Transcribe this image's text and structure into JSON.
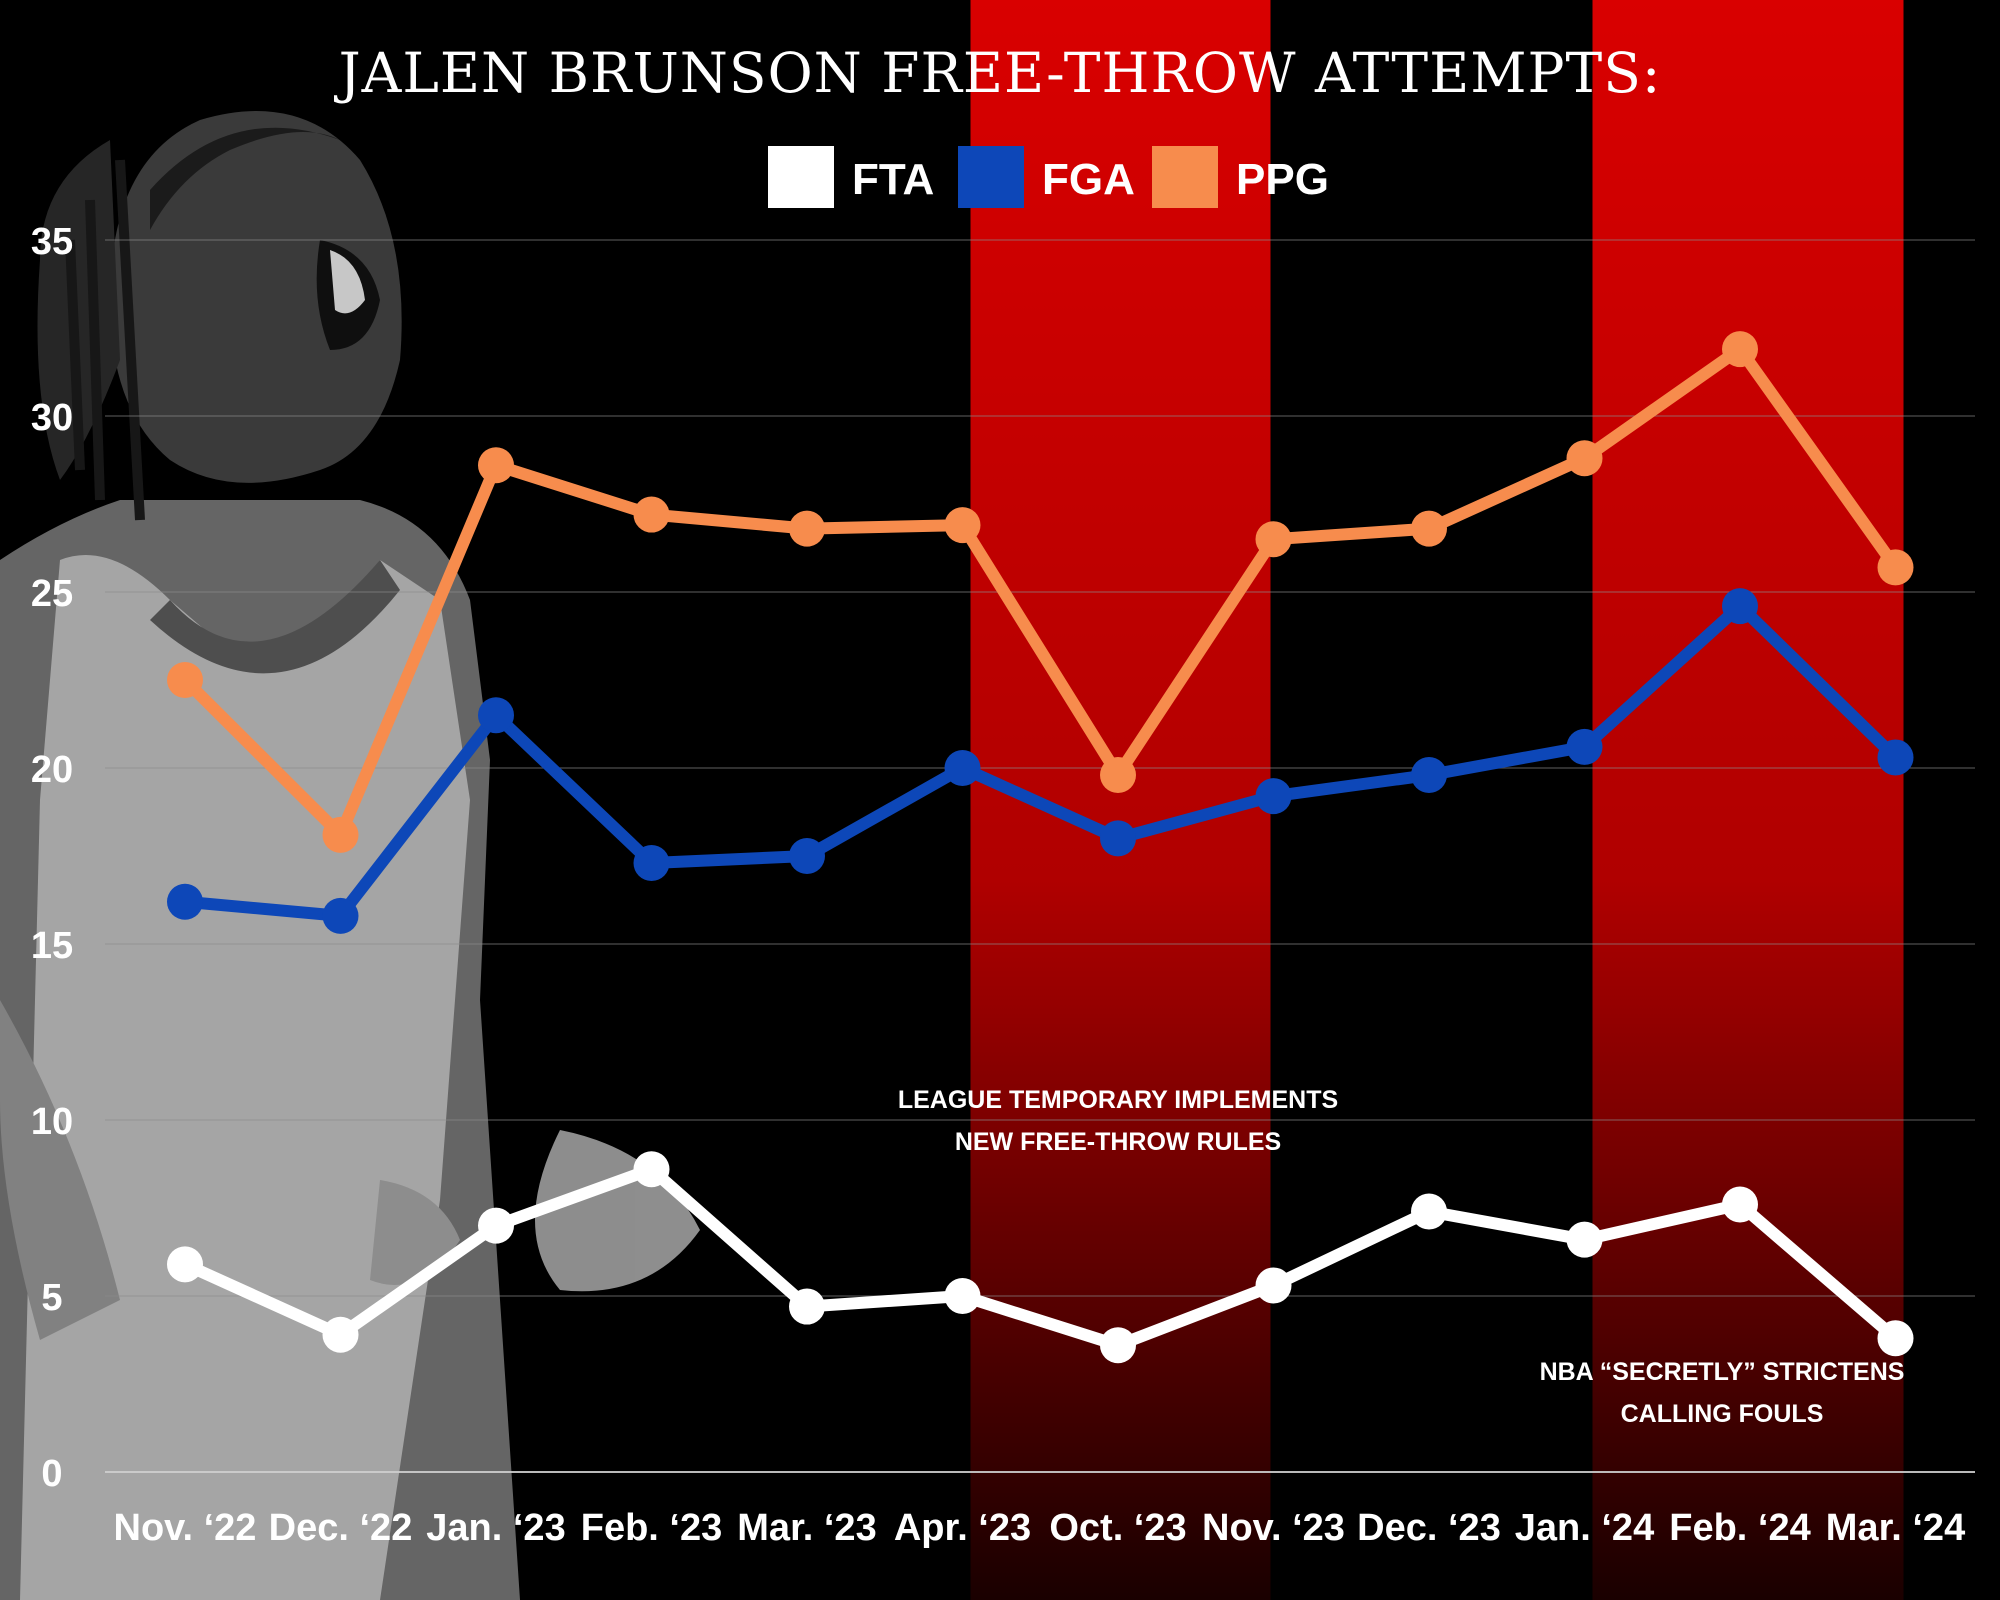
{
  "chart_data": {
    "type": "line",
    "title": "JALEN BRUNSON FREE-THROW ATTEMPTS:",
    "categories": [
      "Nov. ‘22",
      "Dec. ‘22",
      "Jan. ‘23",
      "Feb. ‘23",
      "Mar. ‘23",
      "Apr. ‘23",
      "Oct. ‘23",
      "Nov. ‘23",
      "Dec. ‘23",
      "Jan. ‘24",
      "Feb. ‘24",
      "Mar. ‘24"
    ],
    "ylim": [
      0,
      35
    ],
    "yticks": [
      0,
      5,
      10,
      15,
      20,
      25,
      30,
      35
    ],
    "grid": true,
    "legend_position": "top-center",
    "series": [
      {
        "name": "FTA",
        "color": "#ffffff",
        "values": [
          5.9,
          3.9,
          7.0,
          8.6,
          4.7,
          5.0,
          3.6,
          5.3,
          7.4,
          6.6,
          7.6,
          3.8
        ]
      },
      {
        "name": "FGA",
        "color": "#0d47b8",
        "values": [
          16.2,
          15.8,
          21.5,
          17.3,
          17.5,
          20.0,
          18.0,
          19.2,
          19.8,
          20.6,
          24.6,
          20.3
        ]
      },
      {
        "name": "PPG",
        "color": "#f78c4d",
        "values": [
          22.5,
          18.1,
          28.6,
          27.2,
          26.8,
          26.9,
          19.8,
          26.5,
          26.8,
          28.8,
          31.9,
          25.7
        ]
      }
    ],
    "highlight_ranges": [
      {
        "color": "#d40000",
        "from": "Apr. ‘23",
        "to": "Nov. ‘23"
      },
      {
        "color": "#d40000",
        "from": "Jan. ‘24",
        "to": "Mar. ‘24"
      }
    ],
    "annotations": [
      {
        "lines": [
          "LEAGUE TEMPORARY IMPLEMENTS",
          "NEW FREE-THROW RULES"
        ]
      },
      {
        "lines": [
          "NBA “SECRETLY” STRICTENS",
          "CALLING FOULS"
        ]
      }
    ]
  }
}
